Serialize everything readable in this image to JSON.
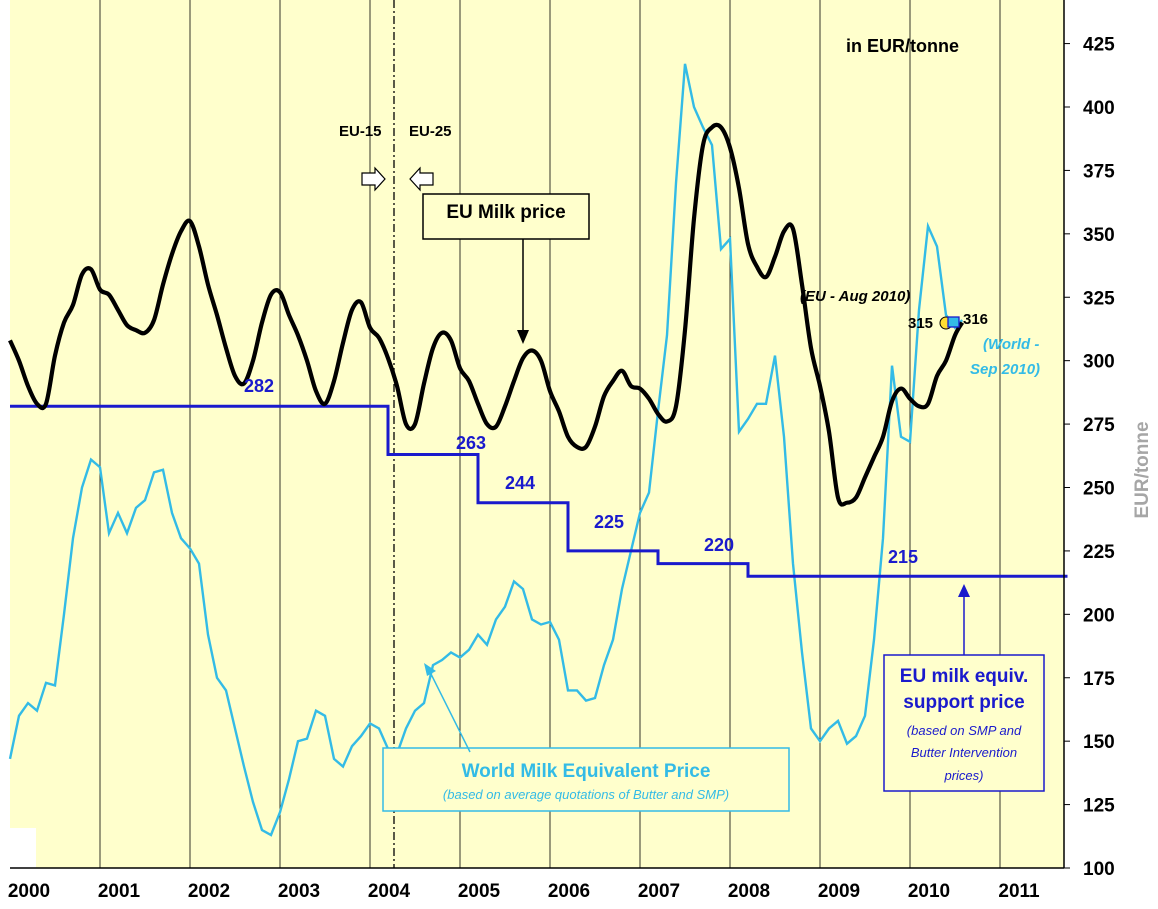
{
  "chart_data": {
    "type": "line",
    "title": "",
    "unit_label": "in EUR/tonne",
    "ylabel": "EUR/tonne",
    "ylim": [
      100,
      425
    ],
    "yticks": [
      100,
      125,
      150,
      175,
      200,
      225,
      250,
      275,
      300,
      325,
      350,
      375,
      400,
      425
    ],
    "xlim": [
      2000,
      2011.75
    ],
    "xtick_labels": [
      "2000",
      "2001",
      "2002",
      "2003",
      "2004",
      "2005",
      "2006",
      "2007",
      "2008",
      "2009",
      "2010",
      "2011"
    ],
    "grid": "vertical",
    "series": [
      {
        "name": "EU Milk price",
        "color": "#000000",
        "x": [
          2000.0,
          2000.1,
          2000.2,
          2000.3,
          2000.4,
          2000.5,
          2000.6,
          2000.7,
          2000.8,
          2000.9,
          2001.0,
          2001.1,
          2001.2,
          2001.3,
          2001.4,
          2001.5,
          2001.6,
          2001.7,
          2001.8,
          2001.9,
          2002.0,
          2002.1,
          2002.2,
          2002.3,
          2002.4,
          2002.5,
          2002.6,
          2002.7,
          2002.8,
          2002.9,
          2003.0,
          2003.1,
          2003.2,
          2003.3,
          2003.4,
          2003.5,
          2003.6,
          2003.7,
          2003.8,
          2003.9,
          2004.0,
          2004.1,
          2004.2,
          2004.3,
          2004.4,
          2004.5,
          2004.6,
          2004.7,
          2004.8,
          2004.9,
          2005.0,
          2005.1,
          2005.2,
          2005.3,
          2005.4,
          2005.5,
          2005.6,
          2005.7,
          2005.8,
          2005.9,
          2006.0,
          2006.1,
          2006.2,
          2006.3,
          2006.4,
          2006.5,
          2006.6,
          2006.7,
          2006.8,
          2006.9,
          2007.0,
          2007.1,
          2007.2,
          2007.3,
          2007.4,
          2007.5,
          2007.6,
          2007.7,
          2007.8,
          2007.9,
          2008.0,
          2008.1,
          2008.2,
          2008.3,
          2008.4,
          2008.5,
          2008.6,
          2008.7,
          2008.8,
          2008.9,
          2009.0,
          2009.1,
          2009.2,
          2009.3,
          2009.4,
          2009.5,
          2009.6,
          2009.7,
          2009.8,
          2009.9,
          2010.0,
          2010.1,
          2010.2,
          2010.3,
          2010.4,
          2010.5,
          2010.58
        ],
        "values": [
          308,
          300,
          290,
          283,
          283,
          302,
          315,
          322,
          334,
          336,
          328,
          326,
          320,
          314,
          312,
          311,
          316,
          330,
          342,
          351,
          355,
          345,
          330,
          318,
          305,
          294,
          291,
          300,
          315,
          326,
          327,
          318,
          310,
          300,
          288,
          283,
          292,
          307,
          320,
          323,
          313,
          309,
          301,
          290,
          275,
          275,
          291,
          305,
          311,
          308,
          297,
          292,
          283,
          275,
          274,
          282,
          292,
          301,
          304,
          300,
          288,
          280,
          270,
          266,
          266,
          274,
          286,
          292,
          296,
          290,
          289,
          285,
          279,
          276,
          282,
          312,
          356,
          385,
          392,
          392,
          384,
          368,
          346,
          337,
          333,
          341,
          351,
          352,
          330,
          305,
          290,
          272,
          246,
          244,
          246,
          254,
          262,
          270,
          284,
          289,
          285,
          282,
          283,
          294,
          300,
          310,
          315
        ]
      },
      {
        "name": "World Milk Equivalent Price",
        "color": "#33bbe6",
        "x": [
          2000.0,
          2000.1,
          2000.2,
          2000.3,
          2000.4,
          2000.5,
          2000.6,
          2000.7,
          2000.8,
          2000.9,
          2001.0,
          2001.1,
          2001.2,
          2001.3,
          2001.4,
          2001.5,
          2001.6,
          2001.7,
          2001.8,
          2001.9,
          2002.0,
          2002.1,
          2002.2,
          2002.3,
          2002.4,
          2002.5,
          2002.6,
          2002.7,
          2002.8,
          2002.9,
          2003.0,
          2003.1,
          2003.2,
          2003.3,
          2003.4,
          2003.5,
          2003.6,
          2003.7,
          2003.8,
          2003.9,
          2004.0,
          2004.1,
          2004.2,
          2004.3,
          2004.4,
          2004.5,
          2004.6,
          2004.7,
          2004.8,
          2004.9,
          2005.0,
          2005.1,
          2005.2,
          2005.3,
          2005.4,
          2005.5,
          2005.6,
          2005.7,
          2005.8,
          2005.9,
          2006.0,
          2006.1,
          2006.2,
          2006.3,
          2006.4,
          2006.5,
          2006.6,
          2006.7,
          2006.8,
          2006.9,
          2007.0,
          2007.1,
          2007.2,
          2007.3,
          2007.4,
          2007.5,
          2007.6,
          2007.7,
          2007.8,
          2007.9,
          2008.0,
          2008.1,
          2008.2,
          2008.3,
          2008.4,
          2008.5,
          2008.6,
          2008.7,
          2008.8,
          2008.9,
          2009.0,
          2009.1,
          2009.2,
          2009.3,
          2009.4,
          2009.5,
          2009.6,
          2009.7,
          2009.8,
          2009.9,
          2010.0,
          2010.1,
          2010.2,
          2010.3,
          2010.4,
          2010.5,
          2010.58
        ],
        "values": [
          143,
          160,
          165,
          162,
          173,
          172,
          200,
          230,
          250,
          261,
          258,
          232,
          240,
          232,
          242,
          245,
          256,
          257,
          240,
          230,
          226,
          220,
          192,
          175,
          170,
          155,
          140,
          126,
          115,
          113,
          122,
          135,
          150,
          151,
          162,
          160,
          143,
          140,
          148,
          152,
          157,
          155,
          147,
          145,
          155,
          162,
          165,
          180,
          182,
          185,
          183,
          186,
          192,
          188,
          198,
          203,
          213,
          210,
          198,
          196,
          197,
          190,
          170,
          170,
          166,
          167,
          180,
          190,
          210,
          225,
          240,
          248,
          280,
          310,
          370,
          417,
          400,
          392,
          385,
          344,
          348,
          272,
          277,
          283,
          283,
          302,
          270,
          220,
          185,
          155,
          150,
          155,
          158,
          149,
          152,
          160,
          190,
          230,
          298,
          270,
          268,
          320,
          353,
          345,
          318,
          313,
          316
        ]
      },
      {
        "name": "EU milk equiv. support price",
        "color": "#1a1acc",
        "step": true,
        "x": [
          2000.0,
          2004.2,
          2005.2,
          2006.2,
          2007.2,
          2008.2,
          2011.75
        ],
        "values": [
          282,
          263,
          244,
          225,
          220,
          215,
          215
        ]
      }
    ],
    "support_labels": [
      "282",
      "263",
      "244",
      "225",
      "220",
      "215"
    ],
    "annotations": {
      "eu15": "EU-15",
      "eu25": "EU-25",
      "eu_milk_box": "EU Milk price",
      "eu_aug": "(EU - Aug 2010)",
      "val315": "315",
      "val316": "316",
      "world_sep_1": "(World -",
      "world_sep_2": "Sep 2010)",
      "world_box_title": "World Milk Equivalent Price",
      "world_box_sub": "(based on average quotations of Butter and SMP)",
      "support_box_l1": "EU milk equiv.",
      "support_box_l2": "support price",
      "support_box_l3": "(based on SMP and",
      "support_box_l4": "Butter Intervention",
      "support_box_l5": "prices)"
    }
  }
}
